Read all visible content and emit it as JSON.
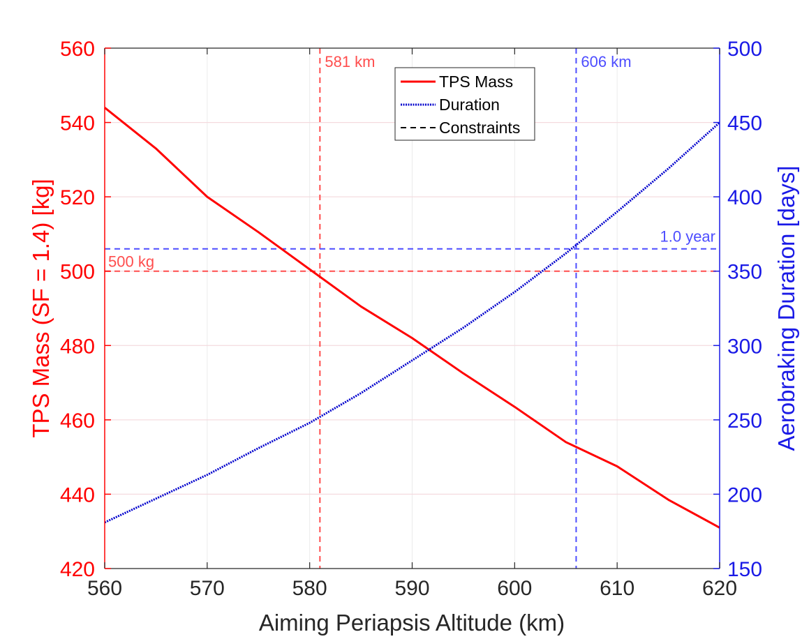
{
  "chart_data": {
    "type": "line",
    "x_label": "Aiming Periapsis Altitude (km)",
    "y_left_label": "TPS Mass (SF = 1.4) [kg]",
    "y_right_label": "Aerobraking Duration [days]",
    "xlim": [
      560,
      620
    ],
    "ylim_left": [
      420,
      560
    ],
    "ylim_right": [
      150,
      500
    ],
    "x_ticks": [
      560,
      570,
      580,
      590,
      600,
      610,
      620
    ],
    "y_left_ticks": [
      420,
      440,
      460,
      480,
      500,
      520,
      540,
      560
    ],
    "y_right_ticks": [
      150,
      200,
      250,
      300,
      350,
      400,
      450,
      500
    ],
    "grid": true,
    "legend_position": "top-center",
    "colors": {
      "left_axis": "#ff0000",
      "right_axis": "#1a1ae6",
      "tps_line": "#ff0000",
      "duration_line": "#0000cc",
      "tps_constraint": "#ff4d4d",
      "duration_constraint": "#4d4dff",
      "grid": "#ebebeb",
      "grid_red": "#f6d6dc"
    },
    "series": [
      {
        "name": "TPS Mass",
        "axis": "left",
        "style": "solid",
        "x": [
          560,
          565,
          570,
          575,
          580,
          585,
          590,
          595,
          600,
          605,
          610,
          615,
          620
        ],
        "y": [
          544,
          533,
          520,
          510.5,
          500.5,
          490.5,
          482,
          472.5,
          463.5,
          454,
          447.5,
          438.5,
          431
        ]
      },
      {
        "name": "Duration",
        "axis": "right",
        "style": "dotted",
        "x": [
          560,
          565,
          570,
          575,
          580,
          585,
          590,
          595,
          600,
          605,
          610,
          615,
          620
        ],
        "y": [
          181,
          197,
          213,
          231,
          248,
          268,
          290,
          312,
          336,
          362,
          390,
          419,
          450
        ]
      }
    ],
    "constraints": [
      {
        "orientation": "vertical",
        "axis": "x",
        "value": 581,
        "label": "581 km",
        "color": "tps"
      },
      {
        "orientation": "vertical",
        "axis": "x",
        "value": 606,
        "label": "606 km",
        "color": "duration"
      },
      {
        "orientation": "horizontal",
        "axis": "left",
        "value": 500,
        "label": "500 kg",
        "color": "tps"
      },
      {
        "orientation": "horizontal",
        "axis": "right",
        "value": 365,
        "label": "1.0 year",
        "color": "duration"
      }
    ],
    "legend": [
      {
        "label": "TPS Mass",
        "style": "solid",
        "color": "#ff0000"
      },
      {
        "label": "Duration",
        "style": "dotted",
        "color": "#0000cc"
      },
      {
        "label": "Constraints",
        "style": "dashed",
        "color": "#000000"
      }
    ]
  }
}
